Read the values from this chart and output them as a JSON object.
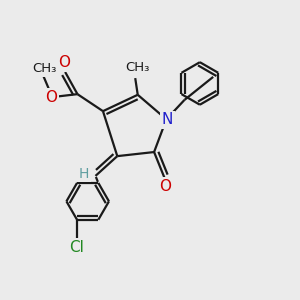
{
  "background_color": "#ebebeb",
  "bond_color": "#1a1a1a",
  "N_color": "#2020cc",
  "O_color": "#cc0000",
  "Cl_color": "#228822",
  "H_color": "#5f9ea0",
  "line_width": 1.6,
  "font_size": 10,
  "fig_width": 3.0,
  "fig_height": 3.0,
  "dpi": 100,
  "xlim": [
    -2.5,
    3.8
  ],
  "ylim": [
    -4.2,
    3.0
  ]
}
